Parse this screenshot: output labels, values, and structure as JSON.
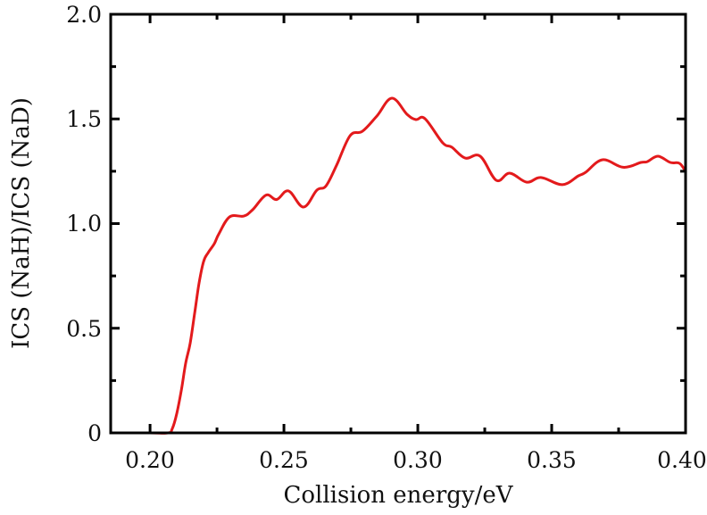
{
  "chart_data": {
    "type": "line",
    "title": "",
    "xlabel": "Collision energy/eV",
    "ylabel": "ICS (NaH)/ICS (NaD)",
    "xlim": [
      0.1853,
      0.4
    ],
    "ylim": [
      0,
      2.0
    ],
    "x_ticks": [
      0.2,
      0.25,
      0.3,
      0.35,
      0.4
    ],
    "x_tick_labels": [
      "0.20",
      "0.25",
      "0.30",
      "0.35",
      "0.40"
    ],
    "x_minor_ticks": [
      0.225,
      0.275,
      0.325,
      0.375
    ],
    "y_ticks": [
      0,
      0.5,
      1.0,
      1.5,
      2.0
    ],
    "y_tick_labels": [
      "0",
      "0.5",
      "1.0",
      "1.5",
      "2.0"
    ],
    "y_minor_ticks": [
      0.25,
      0.75,
      1.25,
      1.75
    ],
    "grid": false,
    "legend": null,
    "series": [
      {
        "name": "ICS(NaH)/ICS(NaD)",
        "color": "#e31a1c",
        "x": [
          0.1853,
          0.2,
          0.2067,
          0.2083,
          0.21,
          0.2117,
          0.2133,
          0.215,
          0.2167,
          0.2183,
          0.22,
          0.2217,
          0.224,
          0.2257,
          0.2297,
          0.235,
          0.2383,
          0.2433,
          0.2473,
          0.2517,
          0.2573,
          0.2623,
          0.2657,
          0.2697,
          0.2747,
          0.2793,
          0.2847,
          0.2903,
          0.296,
          0.2993,
          0.3027,
          0.3093,
          0.3127,
          0.3177,
          0.3233,
          0.3293,
          0.3343,
          0.3407,
          0.346,
          0.354,
          0.36,
          0.3627,
          0.369,
          0.3767,
          0.3833,
          0.3857,
          0.3897,
          0.3943,
          0.3977,
          0.4
        ],
        "values": [
          0.0,
          0.0,
          0.0,
          0.02,
          0.094,
          0.205,
          0.333,
          0.43,
          0.576,
          0.716,
          0.819,
          0.861,
          0.904,
          0.951,
          1.032,
          1.036,
          1.066,
          1.136,
          1.115,
          1.156,
          1.079,
          1.16,
          1.18,
          1.28,
          1.42,
          1.441,
          1.514,
          1.599,
          1.522,
          1.497,
          1.501,
          1.386,
          1.365,
          1.313,
          1.322,
          1.207,
          1.241,
          1.198,
          1.22,
          1.186,
          1.228,
          1.245,
          1.305,
          1.269,
          1.292,
          1.296,
          1.322,
          1.292,
          1.288,
          1.249
        ]
      }
    ]
  },
  "labels": {
    "xlabel": "Collision energy/eV",
    "ylabel": "ICS (NaH)/ICS (NaD)",
    "x_ticks": [
      "0.20",
      "0.25",
      "0.30",
      "0.35",
      "0.40"
    ],
    "y_ticks": [
      "0",
      "0.5",
      "1.0",
      "1.5",
      "2.0"
    ]
  }
}
